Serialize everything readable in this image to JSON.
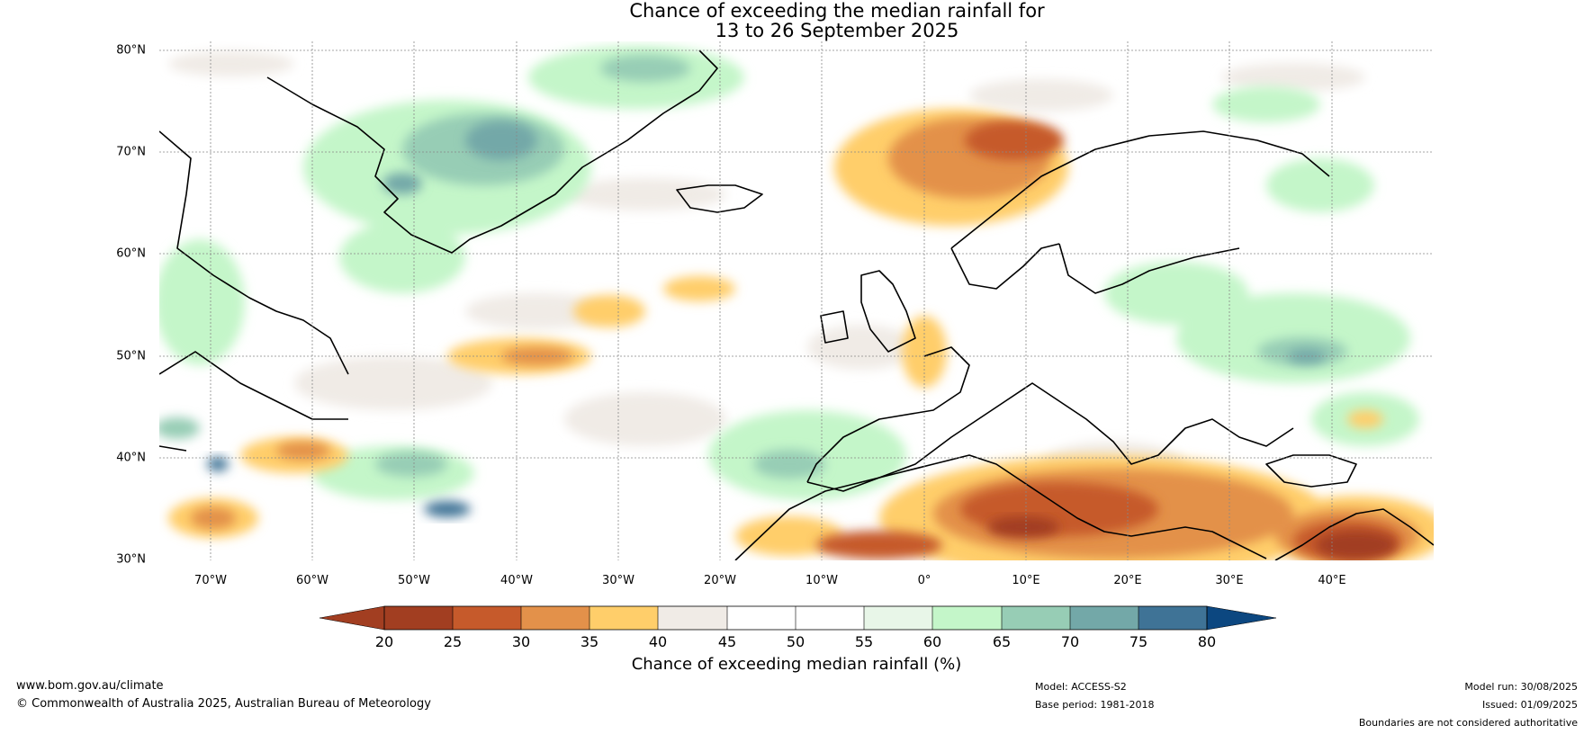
{
  "title": {
    "line1": "Chance of exceeding the median rainfall for",
    "line2": "13 to 26 September 2025"
  },
  "map": {
    "lat_labels": [
      "80°N",
      "70°N",
      "60°N",
      "50°N",
      "40°N",
      "30°N"
    ],
    "lon_labels": [
      "70°W",
      "60°W",
      "50°W",
      "40°W",
      "30°W",
      "20°W",
      "10°W",
      "0°",
      "10°E",
      "20°E",
      "30°E",
      "40°E"
    ],
    "colors": {
      "c20_25": "#a23e21",
      "c25_30": "#c65a2b",
      "c30_35": "#e3914a",
      "c35_40": "#ffce6a",
      "c40_45": "#f0ebe6",
      "c45_55": "#ffffff",
      "c55_60": "#e8f6e8",
      "c60_65": "#c4f6c9",
      "c65_70": "#97cdb5",
      "c70_75": "#73a8a8",
      "c75_80": "#3f7396",
      "c80_up": "#0c4780"
    }
  },
  "colorbar": {
    "ticks": [
      "20",
      "25",
      "30",
      "35",
      "40",
      "45",
      "50",
      "55",
      "60",
      "65",
      "70",
      "75",
      "80"
    ],
    "label": "Chance of exceeding median rainfall (%)"
  },
  "footer": {
    "website": "www.bom.gov.au/climate",
    "copyright": "© Commonwealth of Australia 2025, Australian Bureau of Meteorology",
    "model": "Model: ACCESS-S2",
    "base_period": "Base period: 1981-2018",
    "model_run": "Model run: 30/08/2025",
    "issued": "Issued: 01/09/2025",
    "disclaimer": "Boundaries are not considered authoritative"
  }
}
